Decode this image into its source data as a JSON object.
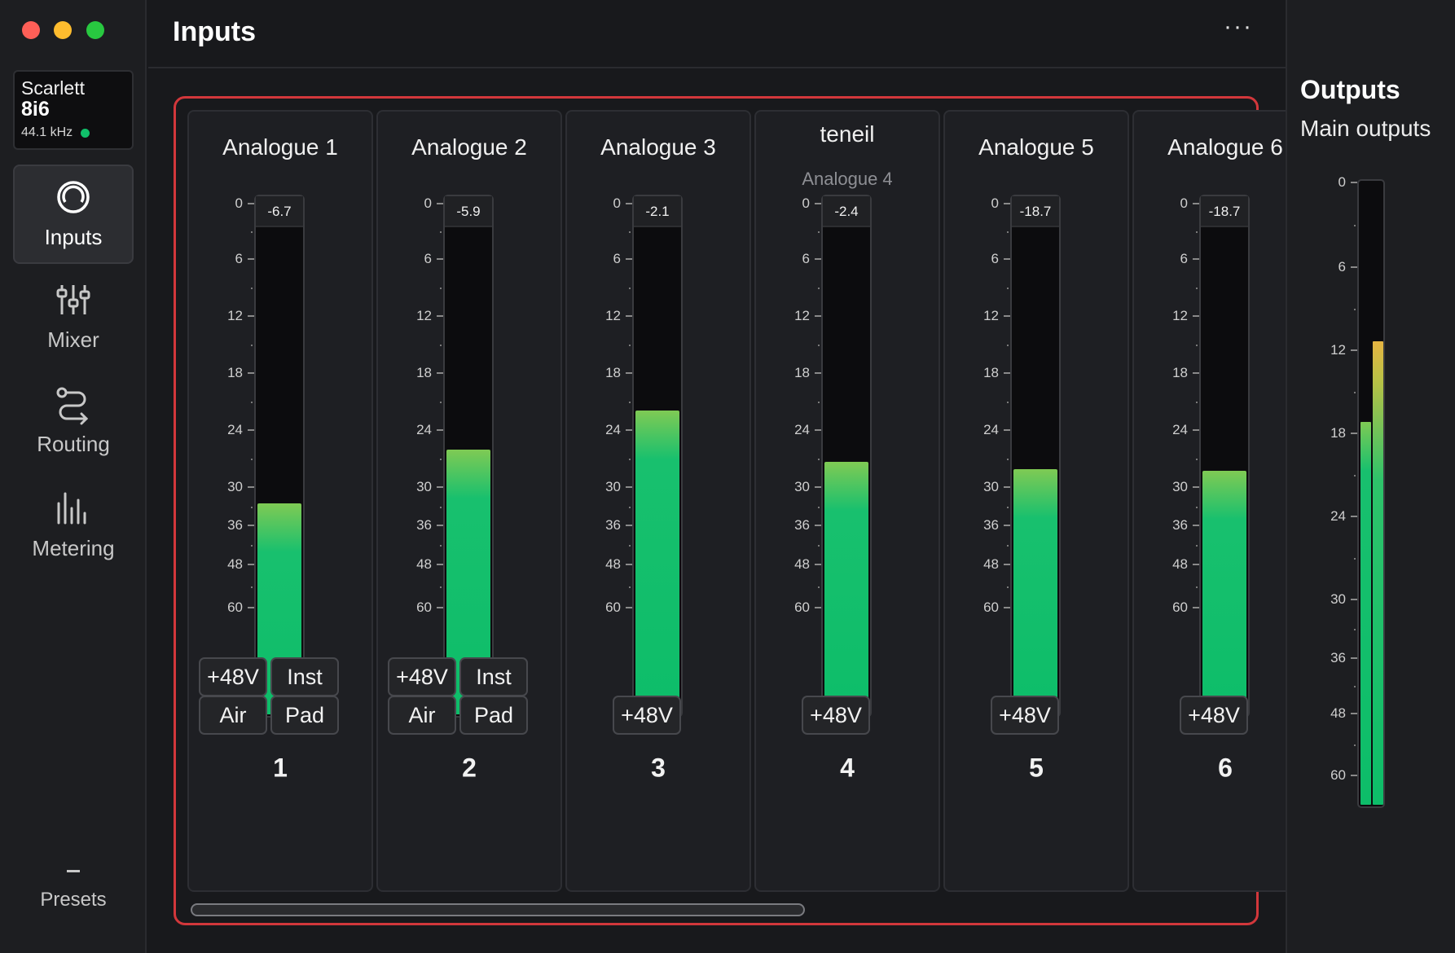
{
  "window": {
    "controls": [
      "close",
      "minimize",
      "zoom"
    ]
  },
  "device": {
    "name": "Scarlett",
    "model": "8i6",
    "sample_rate": "44.1 kHz",
    "status_color": "#10c06a"
  },
  "sidebar": {
    "items": [
      {
        "label": "Inputs",
        "icon": "inputs-icon",
        "active": true
      },
      {
        "label": "Mixer",
        "icon": "mixer-icon",
        "active": false
      },
      {
        "label": "Routing",
        "icon": "routing-icon",
        "active": false
      },
      {
        "label": "Metering",
        "icon": "metering-icon",
        "active": false
      }
    ],
    "presets_label": "Presets"
  },
  "header": {
    "title": "Inputs",
    "more_label": "···"
  },
  "meter_scale": [
    "0",
    "6",
    "12",
    "18",
    "24",
    "30",
    "36",
    "48",
    "60"
  ],
  "channels": [
    {
      "name": "Analogue 1",
      "subtitle": "",
      "peak": "-6.7",
      "level": 0.43,
      "buttons": [
        "+48V",
        "Inst",
        "Air",
        "Pad"
      ],
      "number": "1"
    },
    {
      "name": "Analogue 2",
      "subtitle": "",
      "peak": "-5.9",
      "level": 0.54,
      "buttons": [
        "+48V",
        "Inst",
        "Air",
        "Pad"
      ],
      "number": "2"
    },
    {
      "name": "Analogue 3",
      "subtitle": "",
      "peak": "-2.1",
      "level": 0.62,
      "buttons": [
        "+48V"
      ],
      "number": "3"
    },
    {
      "name": "teneil",
      "subtitle": "Analogue 4",
      "peak": "-2.4",
      "level": 0.515,
      "buttons": [
        "+48V"
      ],
      "number": "4"
    },
    {
      "name": "Analogue 5",
      "subtitle": "",
      "peak": "-18.7",
      "level": 0.5,
      "buttons": [
        "+48V"
      ],
      "number": "5"
    },
    {
      "name": "Analogue 6",
      "subtitle": "",
      "peak": "-18.7",
      "level": 0.497,
      "buttons": [
        "+48V"
      ],
      "number": "6"
    }
  ],
  "outputs": {
    "title": "Outputs",
    "subtitle": "Main outputs",
    "scale": [
      "0",
      "6",
      "12",
      "18",
      "24",
      "30",
      "36",
      "48",
      "60"
    ],
    "level_left": 0.615,
    "level_right": 0.745
  },
  "colors": {
    "accent_frame": "#d2373b",
    "meter_green": "#0dbd69",
    "meter_yellow": "#e6b542"
  }
}
